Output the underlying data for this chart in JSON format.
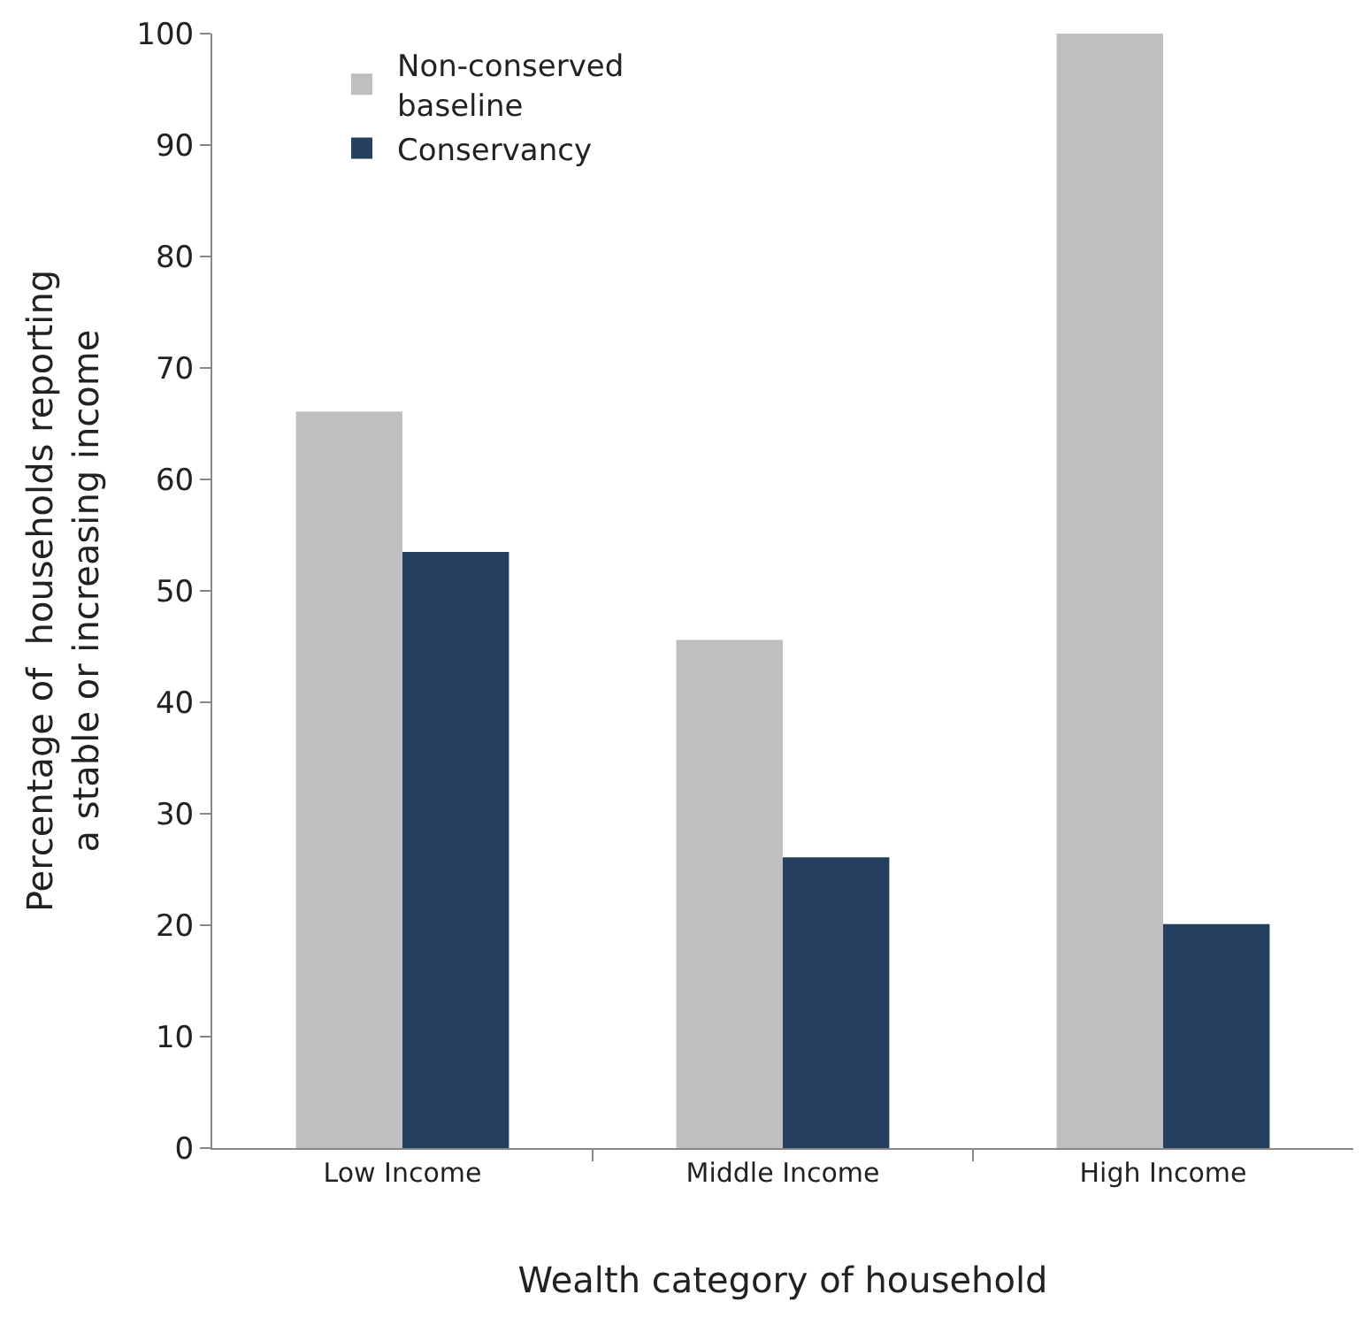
{
  "chart_data": {
    "type": "bar",
    "categories": [
      "Low Income",
      "Middle Income",
      "High Income"
    ],
    "series": [
      {
        "name": "Non-conserved baseline",
        "color": "#bfbfbf",
        "values": [
          66.1,
          45.6,
          100
        ]
      },
      {
        "name": "Conservancy",
        "color": "#253f5f",
        "values": [
          53.5,
          26.1,
          20.1
        ]
      }
    ],
    "xlabel": "Wealth category of household",
    "ylabel": "Percentage of  households reporting a stable or increasing income",
    "ylim": [
      0,
      100
    ],
    "yticks": [
      0,
      10,
      20,
      30,
      40,
      50,
      60,
      70,
      80,
      90,
      100
    ],
    "legend": "top left"
  }
}
